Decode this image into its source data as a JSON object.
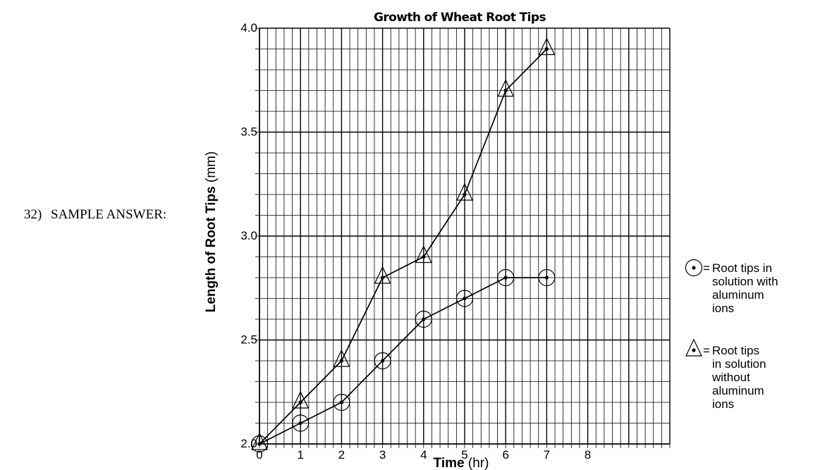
{
  "question": {
    "number": "32)",
    "label": "SAMPLE ANSWER:"
  },
  "chart_data": {
    "type": "line",
    "title": "Growth of Wheat Root Tips",
    "xlabel": {
      "main": "Time",
      "unit": " (hr)"
    },
    "ylabel": {
      "main": "Length of Root Tips",
      "unit": " (mm)"
    },
    "xlim": [
      0,
      10
    ],
    "ylim": [
      2.0,
      4.0
    ],
    "xticks": [
      "0",
      "1",
      "2",
      "3",
      "4",
      "5",
      "6",
      "7",
      "8"
    ],
    "yticks": [
      "2.0",
      "2.5",
      "3.0",
      "3.5",
      "4.0"
    ],
    "grid": true,
    "legend_position": "right",
    "series": [
      {
        "marker": "circle",
        "legend": [
          "Root tips in",
          "solution with",
          "aluminum",
          "ions"
        ],
        "x": [
          0,
          1,
          2,
          3,
          4,
          5,
          6,
          7
        ],
        "y": [
          2.0,
          2.1,
          2.2,
          2.4,
          2.6,
          2.7,
          2.8,
          2.8
        ]
      },
      {
        "marker": "triangle",
        "legend": [
          "Root tips",
          "in solution",
          "without",
          "aluminum",
          "ions"
        ],
        "x": [
          0,
          1,
          2,
          3,
          4,
          5,
          6,
          7
        ],
        "y": [
          2.0,
          2.2,
          2.4,
          2.8,
          2.9,
          3.2,
          3.7,
          3.9
        ]
      }
    ],
    "legend_equals": "="
  }
}
